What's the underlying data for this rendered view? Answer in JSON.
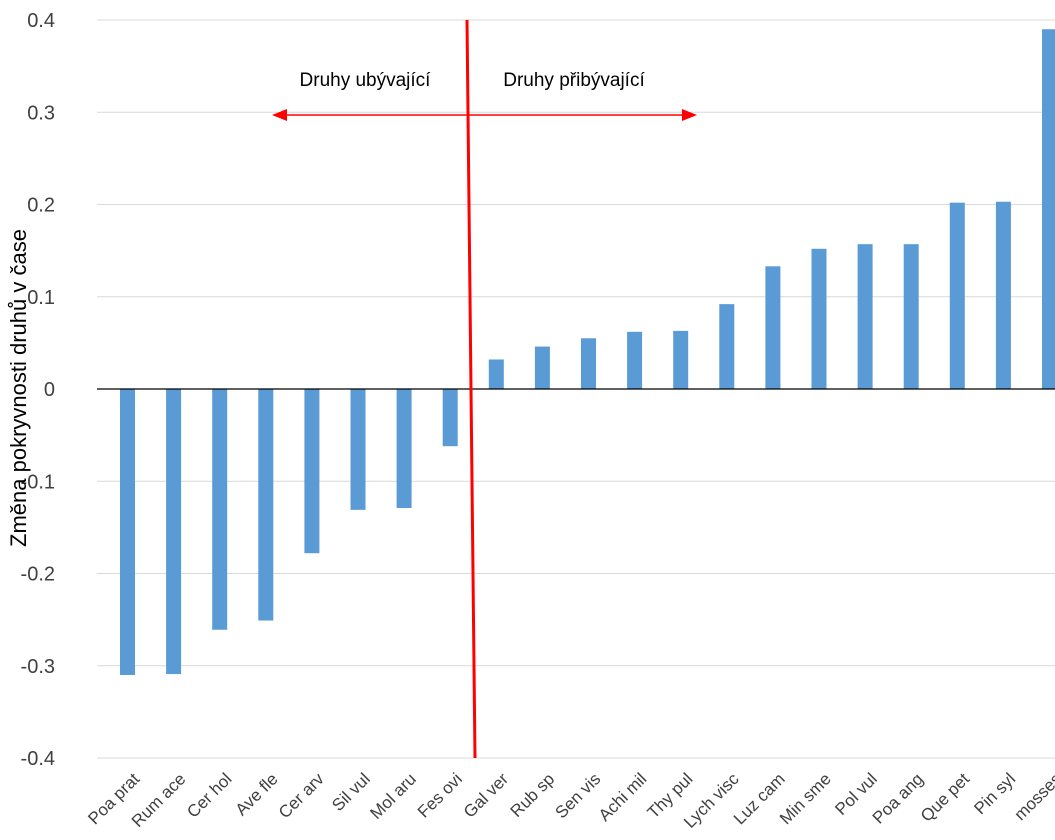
{
  "chart_data": {
    "type": "bar",
    "title": "",
    "xlabel": "",
    "ylabel": "Změna pokryvnosti druhů v čase",
    "ylim": [
      -0.4,
      0.4
    ],
    "yticks": [
      -0.4,
      -0.3,
      -0.2,
      -0.1,
      0,
      0.1,
      0.2,
      0.3,
      0.4
    ],
    "ytick_labels": [
      "-0.4",
      "-0.3",
      "-0.2",
      "-0.1",
      "0",
      "0.1",
      "0.2",
      "0.3",
      "0.4"
    ],
    "grid": true,
    "categories": [
      "Poa prat",
      "Rum ace",
      "Cer hol",
      "Ave fle",
      "Cer arv",
      "Sil vul",
      "Mol aru",
      "Fes ovi",
      "Gal ver",
      "Rub sp",
      "Sen vis",
      "Achi mil",
      "Thy pul",
      "Lych visc",
      "Luz cam",
      "Min sme",
      "Pol vul",
      "Poa ang",
      "Que pet",
      "Pin syl",
      "mosses"
    ],
    "values": [
      -0.31,
      -0.309,
      -0.261,
      -0.251,
      -0.178,
      -0.131,
      -0.129,
      -0.062,
      0.032,
      0.046,
      0.055,
      0.062,
      0.063,
      0.092,
      0.133,
      0.152,
      0.157,
      0.157,
      0.202,
      0.203,
      0.39
    ],
    "bar_color": "#5b9bd5",
    "divider": {
      "color": "#ff0000",
      "between": [
        "Fes ovi",
        "Gal ver"
      ]
    },
    "annotations": [
      {
        "label": "Druhy ubývající",
        "arrow": "left"
      },
      {
        "label": "Druhy přibývající",
        "arrow": "right"
      }
    ]
  }
}
